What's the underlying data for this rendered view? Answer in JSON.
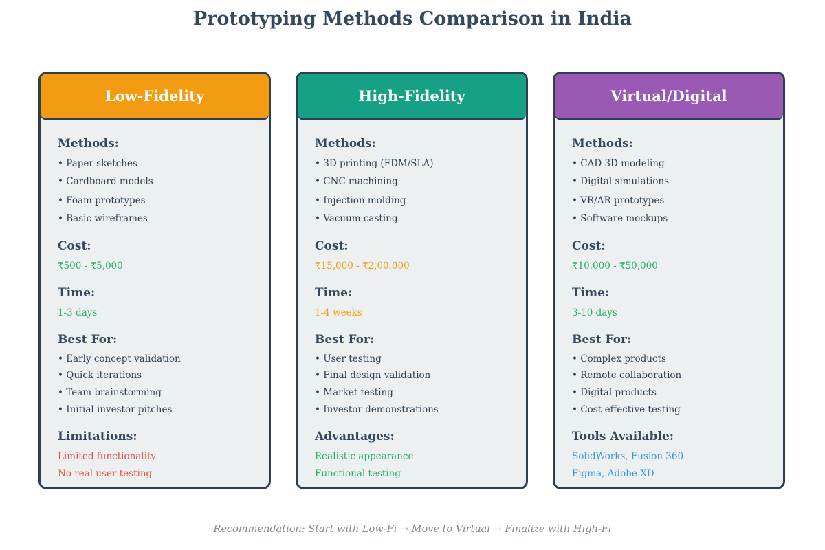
{
  "title": "Prototyping Methods Comparison in India",
  "footer": "Recommendation: Start with Low-Fi → Move to Virtual → Finalize with High-Fi",
  "colors": {
    "low_fi_header": "#f39c12",
    "high_fi_header": "#16a085",
    "virtual_header": "#9b59b6",
    "green": "#27ae60",
    "orange": "#f39c12",
    "red": "#e74c3c",
    "blue": "#3498db",
    "card_bg": "#ecf0f1",
    "border": "#2c3e50"
  },
  "cards": [
    {
      "header": "Low-Fidelity",
      "methods_label": "Methods:",
      "methods": [
        "• Paper sketches",
        "• Cardboard models",
        "• Foam prototypes",
        "• Basic wireframes"
      ],
      "cost_label": "Cost:",
      "cost": "₹500 - ₹5,000",
      "time_label": "Time:",
      "time": "1-3 days",
      "best_label": "Best For:",
      "best": [
        "• Early concept validation",
        "• Quick iterations",
        "• Team brainstorming",
        "• Initial investor pitches"
      ],
      "extra_label": "Limitations:",
      "extra": [
        "Limited functionality",
        "No real user testing"
      ]
    },
    {
      "header": "High-Fidelity",
      "methods_label": "Methods:",
      "methods": [
        "• 3D printing (FDM/SLA)",
        "• CNC machining",
        "• Injection molding",
        "• Vacuum casting"
      ],
      "cost_label": "Cost:",
      "cost": "₹15,000 - ₹2,00,000",
      "time_label": "Time:",
      "time": "1-4 weeks",
      "best_label": "Best For:",
      "best": [
        "• User testing",
        "• Final design validation",
        "• Market testing",
        "• Investor demonstrations"
      ],
      "extra_label": "Advantages:",
      "extra": [
        "Realistic appearance",
        "Functional testing"
      ]
    },
    {
      "header": "Virtual/Digital",
      "methods_label": "Methods:",
      "methods": [
        "• CAD 3D modeling",
        "• Digital simulations",
        "• VR/AR prototypes",
        "• Software mockups"
      ],
      "cost_label": "Cost:",
      "cost": "₹10,000 - ₹50,000",
      "time_label": "Time:",
      "time": "3-10 days",
      "best_label": "Best For:",
      "best": [
        "• Complex products",
        "• Remote collaboration",
        "• Digital products",
        "• Cost-effective testing"
      ],
      "extra_label": "Tools Available:",
      "extra": [
        "SolidWorks, Fusion 360",
        "Figma, Adobe XD"
      ]
    }
  ]
}
